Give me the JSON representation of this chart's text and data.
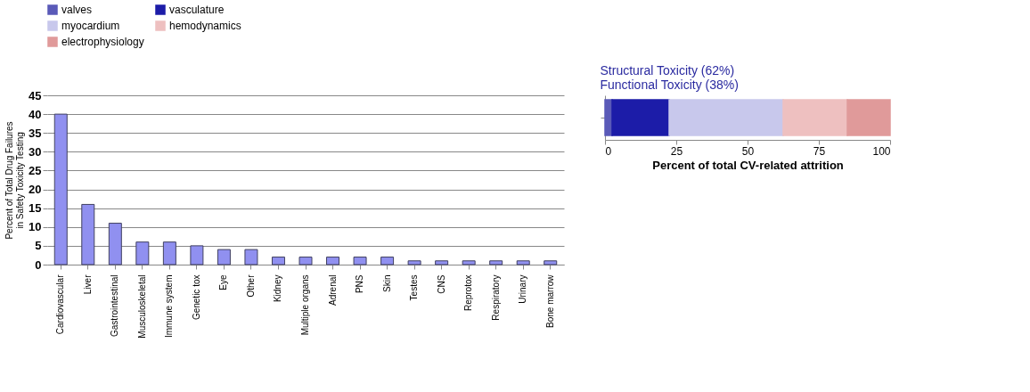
{
  "chart_data": [
    {
      "type": "bar",
      "ylabel": "Percent of Total Drug Failures\nin Safety Toxicity Testing",
      "categories": [
        "Cardiovascular",
        "Liver",
        "Gastrointestinal",
        "Musculoskeletal",
        "Immune system",
        "Genetic tox",
        "Eye",
        "Other",
        "Kidney",
        "Multiple organs",
        "Adrenal",
        "PNS",
        "Skin",
        "Testes",
        "CNS",
        "Reprotox",
        "Respiratory",
        "Urinary",
        "Bone marrow"
      ],
      "values": [
        40,
        16,
        11,
        6,
        6,
        5,
        4,
        4,
        2,
        2,
        2,
        2,
        2,
        1,
        1,
        1,
        1,
        1,
        1
      ],
      "color": "#9090f0",
      "ylim": [
        0,
        45
      ],
      "yticks": [
        0,
        5,
        10,
        15,
        20,
        25,
        30,
        35,
        40,
        45
      ],
      "grid": "y"
    },
    {
      "type": "bar",
      "orientation": "horizontal",
      "stacked": true,
      "xlabel": "Percent of total CV-related attrition",
      "annotations": [
        "Structural Toxicity (62%)",
        "Functional Toxicity (38%)"
      ],
      "categories": [
        null
      ],
      "series": [
        {
          "name": "valves",
          "color": "#5a5ab8",
          "values": [
            2.5
          ]
        },
        {
          "name": "vasculature",
          "color": "#1c1ca8",
          "values": [
            20
          ]
        },
        {
          "name": "myocardium",
          "color": "#c8c8ec",
          "values": [
            40
          ]
        },
        {
          "name": "hemodynamics",
          "color": "#eec0c0",
          "values": [
            22.5
          ]
        },
        {
          "name": "electrophysiology",
          "color": "#e09a9a",
          "values": [
            15
          ]
        }
      ],
      "xlim": [
        0,
        100
      ],
      "xticks": [
        0,
        25,
        50,
        75,
        100
      ],
      "legend": "top"
    }
  ]
}
